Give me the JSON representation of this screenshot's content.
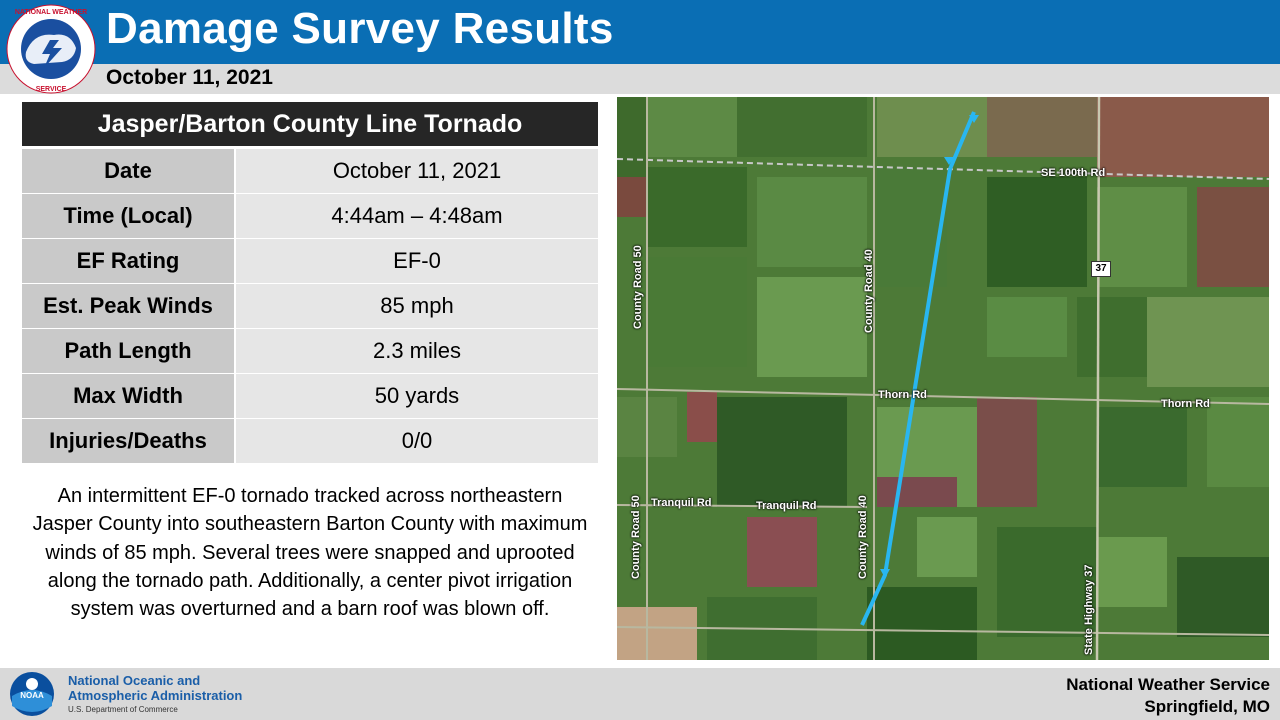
{
  "header": {
    "title": "Damage Survey Results",
    "date": "October 11, 2021",
    "nws_logo_text": "NATIONAL WEATHER SERVICE"
  },
  "table": {
    "heading": "Jasper/Barton County Line Tornado",
    "rows": [
      {
        "label": "Date",
        "value": "October 11, 2021"
      },
      {
        "label": "Time (Local)",
        "value": "4:44am – 4:48am"
      },
      {
        "label": "EF Rating",
        "value": "EF-0"
      },
      {
        "label": "Est. Peak Winds",
        "value": "85 mph"
      },
      {
        "label": "Path Length",
        "value": "2.3 miles"
      },
      {
        "label": "Max Width",
        "value": "50 yards"
      },
      {
        "label": "Injuries/Deaths",
        "value": "0/0"
      }
    ]
  },
  "description": "An intermittent EF-0 tornado tracked across northeastern Jasper County into southeastern Barton County with maximum winds of 85 mph. Several trees were snapped and uprooted along the tornado path. Additionally, a center pivot irrigation system was overturned and a barn roof was blown off.",
  "map": {
    "labels": {
      "se100": "SE 100th Rd",
      "hwy37": "37",
      "thorn1": "Thorn Rd",
      "thorn2": "Thorn Rd",
      "tranquil1": "Tranquil Rd",
      "tranquil2": "Tranquil Rd",
      "cr50a": "County Road 50",
      "cr50b": "County Road 50",
      "cr40a": "County Road 40",
      "cr40b": "County Road 40",
      "sh37": "State Highway 37"
    },
    "track_color": "#29b6f0"
  },
  "footer": {
    "noaa_line1": "National Oceanic and",
    "noaa_line2": "Atmospheric Administration",
    "noaa_sub": "U.S. Department of Commerce",
    "noaa_badge": "NOAA",
    "nws_line1": "National Weather Service",
    "nws_line2": "Springfield, MO"
  }
}
